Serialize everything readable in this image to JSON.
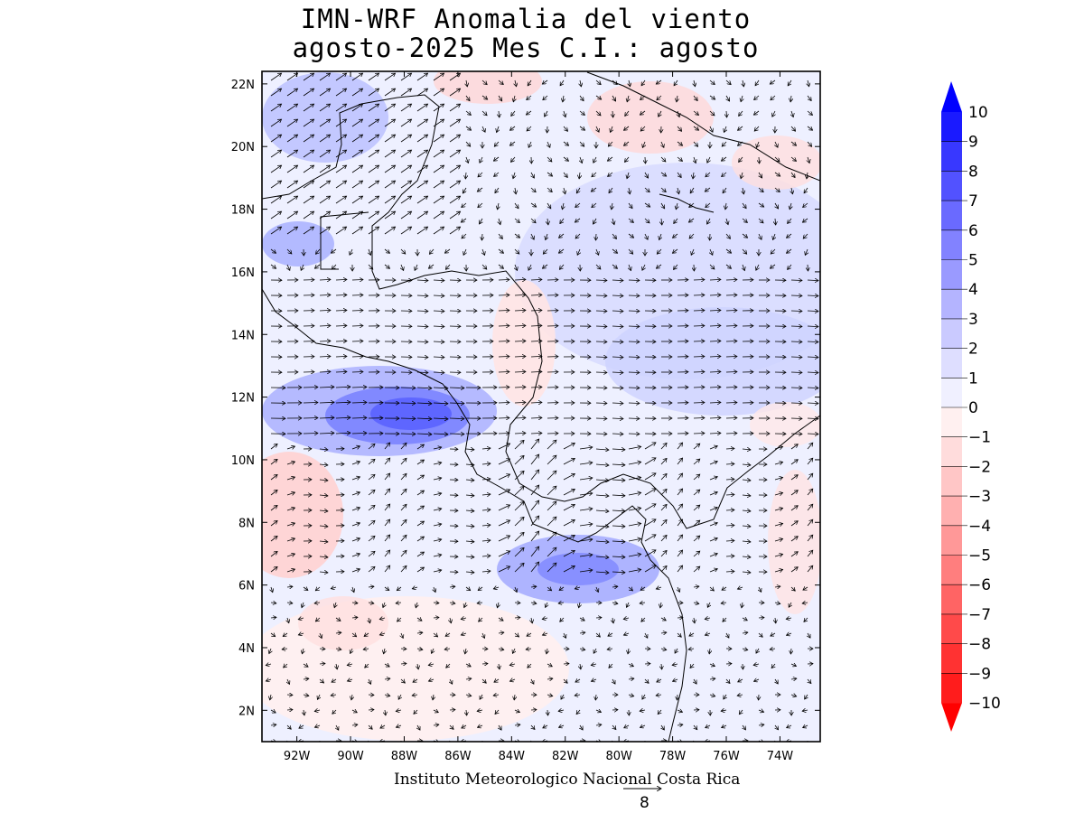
{
  "title": {
    "line1": "IMN-WRF Anomalia del viento",
    "line2": "agosto-2025 Mes C.I.: agosto"
  },
  "credit": "Instituto Meteorologico Nacional Costa Rica",
  "reference_vector": {
    "magnitude": "8"
  },
  "map_data": {
    "lon_range": [
      -93.3,
      -72.5
    ],
    "lat_range": [
      1.0,
      22.4
    ],
    "lon_ticks": [
      "92W",
      "90W",
      "88W",
      "86W",
      "84W",
      "82W",
      "80W",
      "78W",
      "76W",
      "74W"
    ],
    "lon_values": [
      -92,
      -90,
      -88,
      -86,
      -84,
      -82,
      -80,
      -78,
      -76,
      -74
    ],
    "lat_ticks": [
      "2N",
      "4N",
      "6N",
      "8N",
      "10N",
      "12N",
      "14N",
      "16N",
      "18N",
      "20N",
      "22N"
    ],
    "lat_values": [
      2,
      4,
      6,
      8,
      10,
      12,
      14,
      16,
      18,
      20,
      22
    ]
  },
  "colorbar": {
    "labels": [
      "10",
      "9",
      "8",
      "7",
      "6",
      "5",
      "4",
      "3",
      "2",
      "1",
      "0",
      "−1",
      "−2",
      "−3",
      "−4",
      "−5",
      "−6",
      "−7",
      "−8",
      "−9",
      "−10"
    ],
    "colors": [
      "#1a1aff",
      "#3838ff",
      "#5252ff",
      "#6a6aff",
      "#8282ff",
      "#9a9aff",
      "#b4b4ff",
      "#cacaff",
      "#dedeff",
      "#f0f0ff",
      "#fff0f0",
      "#ffdcdc",
      "#ffc6c6",
      "#ffb0b0",
      "#ff9898",
      "#ff7e7e",
      "#ff6464",
      "#ff4a4a",
      "#ff3232",
      "#ff1c1c"
    ],
    "top_arrow_color": "#0000ff",
    "bottom_arrow_color": "#ff0000"
  }
}
